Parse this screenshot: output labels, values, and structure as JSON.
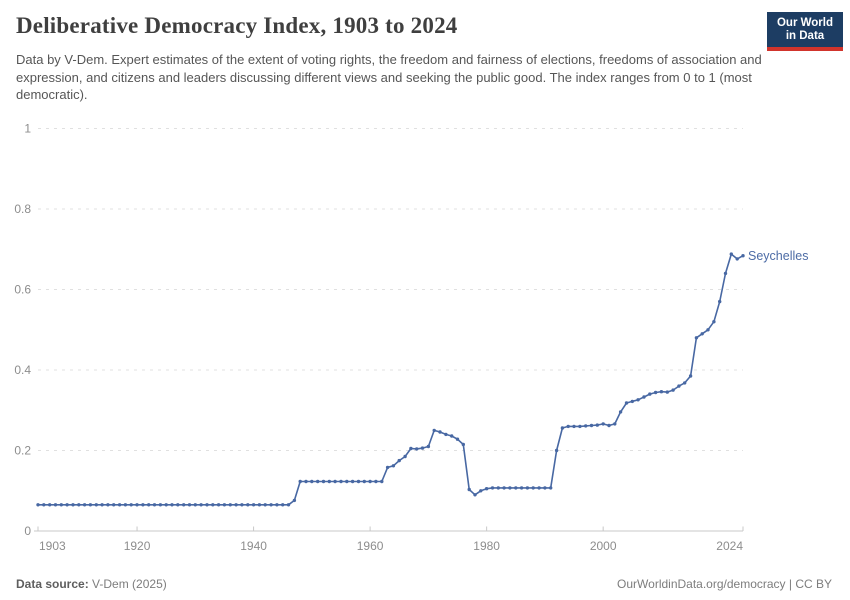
{
  "header": {
    "title": "Deliberative Democracy Index, 1903 to 2024",
    "subtitle": "Data by V-Dem. Expert estimates of the extent of voting rights, the freedom and fairness of elections, freedoms of association and expression, and citizens and leaders discussing different views and seeking the public good. The index ranges from 0 to 1 (most democratic)."
  },
  "logo": {
    "line1": "Our World",
    "line2": "in Data",
    "bg_color": "#1d3d63",
    "accent_color": "#d1342c"
  },
  "footer": {
    "source_label": "Data source:",
    "source_value": "V-Dem (2025)",
    "credit": "OurWorldinData.org/democracy | CC BY"
  },
  "chart_data": {
    "type": "line",
    "title": "Deliberative Democracy Index, 1903 to 2024",
    "series_label": "Seychelles",
    "line_color": "#4868a3",
    "label_color": "#4d6ca6",
    "grid": true,
    "grid_color": "#e0e0e0",
    "axis_color": "#c8c8c8",
    "tick_label_color": "#8d8d8d",
    "xlim": [
      1903,
      2024
    ],
    "ylim": [
      0,
      1
    ],
    "x_ticks": [
      1903,
      1920,
      1940,
      1960,
      1980,
      2000,
      2024
    ],
    "y_ticks": [
      0,
      0.2,
      0.4,
      0.6,
      0.8,
      1
    ],
    "xlabel": "",
    "ylabel": "",
    "years": [
      1903,
      1904,
      1905,
      1906,
      1907,
      1908,
      1909,
      1910,
      1911,
      1912,
      1913,
      1914,
      1915,
      1916,
      1917,
      1918,
      1919,
      1920,
      1921,
      1922,
      1923,
      1924,
      1925,
      1926,
      1927,
      1928,
      1929,
      1930,
      1931,
      1932,
      1933,
      1934,
      1935,
      1936,
      1937,
      1938,
      1939,
      1940,
      1941,
      1942,
      1943,
      1944,
      1945,
      1946,
      1947,
      1948,
      1949,
      1950,
      1951,
      1952,
      1953,
      1954,
      1955,
      1956,
      1957,
      1958,
      1959,
      1960,
      1961,
      1962,
      1963,
      1964,
      1965,
      1966,
      1967,
      1968,
      1969,
      1970,
      1971,
      1972,
      1973,
      1974,
      1975,
      1976,
      1977,
      1978,
      1979,
      1980,
      1981,
      1982,
      1983,
      1984,
      1985,
      1986,
      1987,
      1988,
      1989,
      1990,
      1991,
      1992,
      1993,
      1994,
      1995,
      1996,
      1997,
      1998,
      1999,
      2000,
      2001,
      2002,
      2003,
      2004,
      2005,
      2006,
      2007,
      2008,
      2009,
      2010,
      2011,
      2012,
      2013,
      2014,
      2015,
      2016,
      2017,
      2018,
      2019,
      2020,
      2021,
      2022,
      2023,
      2024
    ],
    "values": [
      0.065,
      0.065,
      0.065,
      0.065,
      0.065,
      0.065,
      0.065,
      0.065,
      0.065,
      0.065,
      0.065,
      0.065,
      0.065,
      0.065,
      0.065,
      0.065,
      0.065,
      0.065,
      0.065,
      0.065,
      0.065,
      0.065,
      0.065,
      0.065,
      0.065,
      0.065,
      0.065,
      0.065,
      0.065,
      0.065,
      0.065,
      0.065,
      0.065,
      0.065,
      0.065,
      0.065,
      0.065,
      0.065,
      0.065,
      0.065,
      0.065,
      0.065,
      0.065,
      0.065,
      0.076,
      0.123,
      0.123,
      0.123,
      0.123,
      0.123,
      0.123,
      0.123,
      0.123,
      0.123,
      0.123,
      0.123,
      0.123,
      0.123,
      0.123,
      0.123,
      0.158,
      0.162,
      0.175,
      0.185,
      0.205,
      0.204,
      0.206,
      0.21,
      0.25,
      0.246,
      0.24,
      0.236,
      0.228,
      0.215,
      0.103,
      0.09,
      0.1,
      0.105,
      0.107,
      0.107,
      0.107,
      0.107,
      0.107,
      0.107,
      0.107,
      0.107,
      0.107,
      0.107,
      0.107,
      0.2,
      0.256,
      0.26,
      0.26,
      0.26,
      0.261,
      0.262,
      0.263,
      0.266,
      0.262,
      0.266,
      0.296,
      0.318,
      0.322,
      0.326,
      0.333,
      0.34,
      0.344,
      0.346,
      0.345,
      0.35,
      0.36,
      0.368,
      0.385,
      0.48,
      0.49,
      0.5,
      0.52,
      0.57,
      0.64,
      0.688,
      0.676,
      0.684
    ]
  }
}
